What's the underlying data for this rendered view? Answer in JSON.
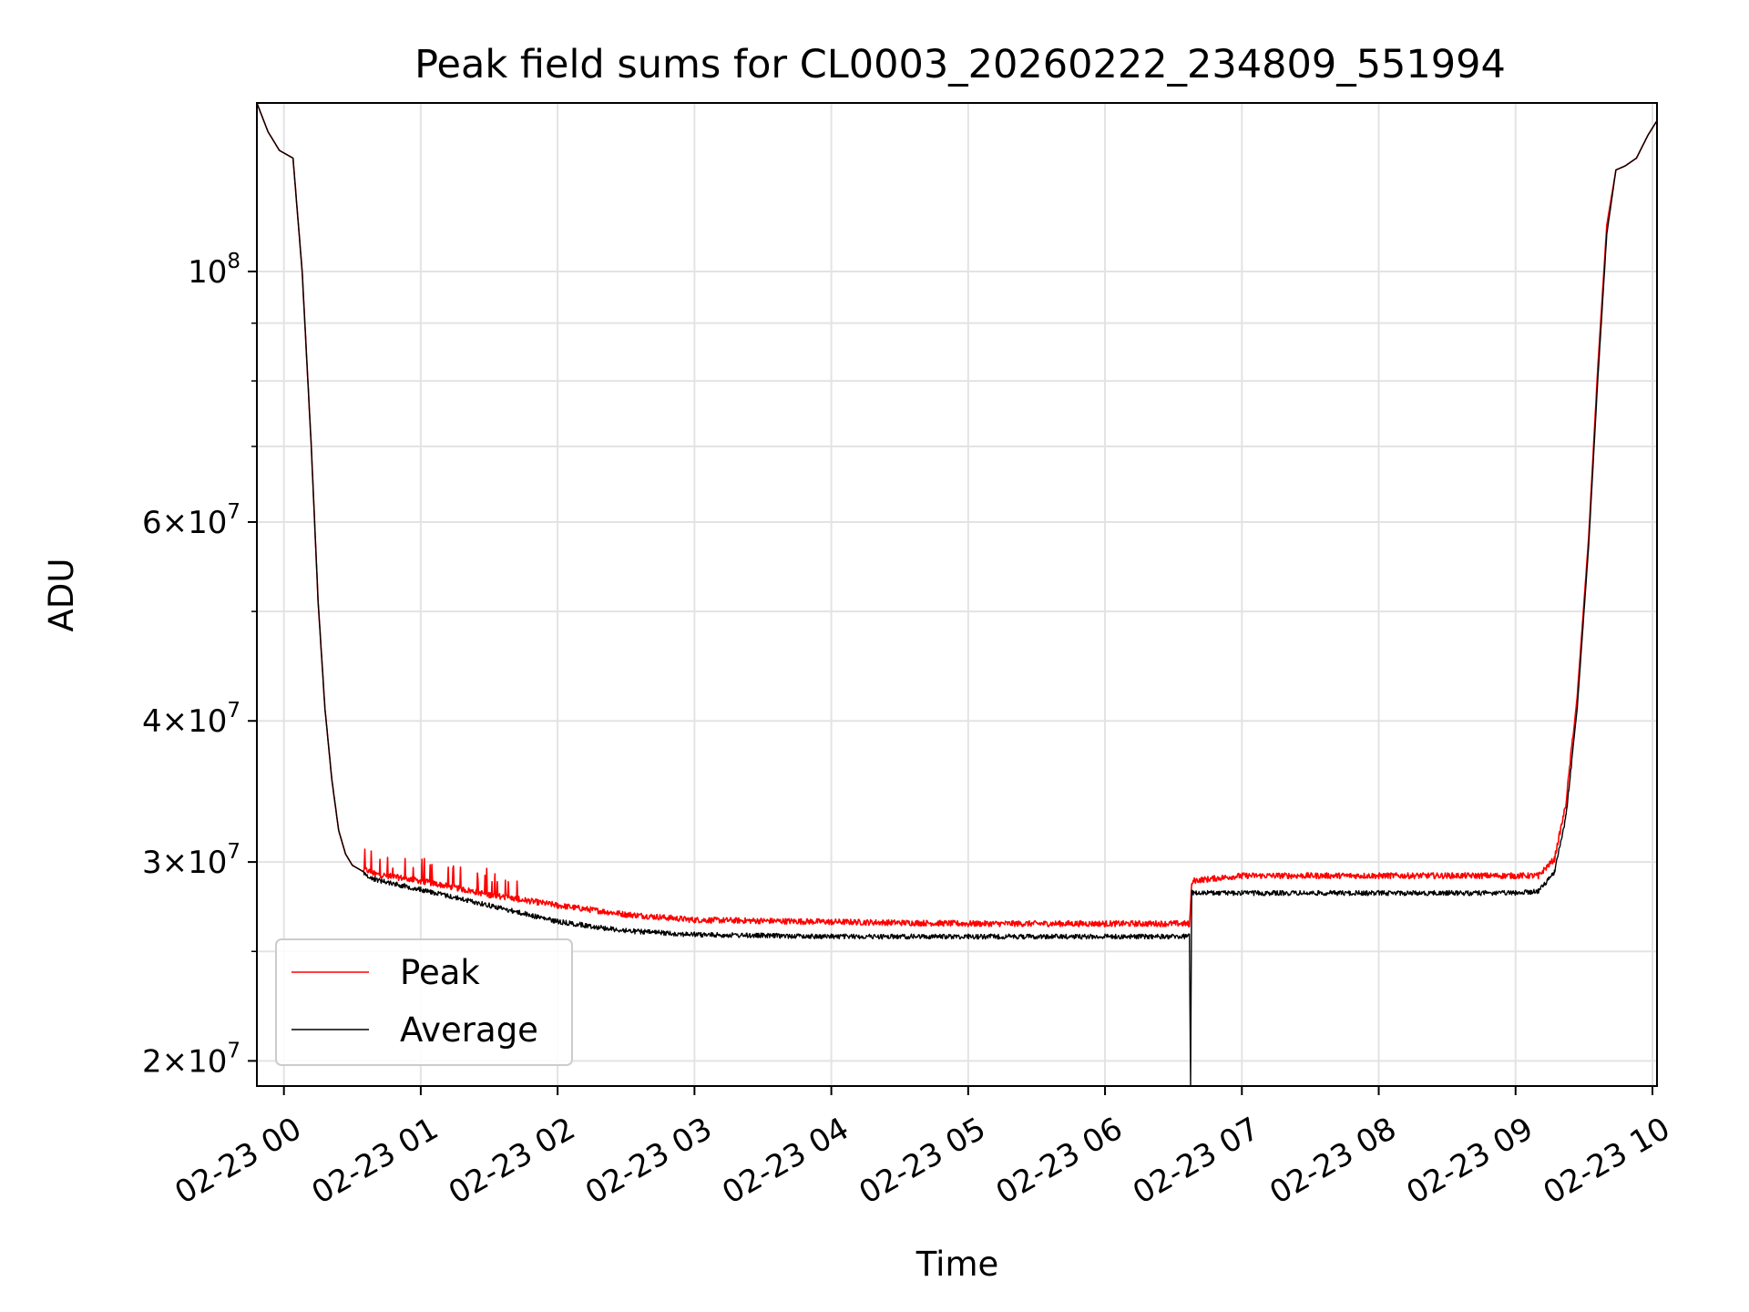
{
  "chart_data": {
    "type": "line",
    "title": "Peak field sums for CL0003_20260222_234809_551994",
    "xlabel": "Time",
    "ylabel": "ADU",
    "x_ticks": [
      "02-23 00",
      "02-23 01",
      "02-23 02",
      "02-23 03",
      "02-23 04",
      "02-23 05",
      "02-23 06",
      "02-23 07",
      "02-23 08",
      "02-23 09",
      "02-23 10"
    ],
    "xlim": [
      "2026-02-22 23:48:09",
      "2026-02-23 10:02:00"
    ],
    "y_scale": "log",
    "ylim": [
      19000000,
      141000000
    ],
    "y_ticks": [
      {
        "value": 20000000,
        "mantissa": "2",
        "exp": "7"
      },
      {
        "value": 30000000,
        "mantissa": "3",
        "exp": "7"
      },
      {
        "value": 40000000,
        "mantissa": "4",
        "exp": "7"
      },
      {
        "value": 60000000,
        "mantissa": "6",
        "exp": "7"
      },
      {
        "value": 100000000,
        "mantissa": "",
        "exp": "8"
      }
    ],
    "grid": true,
    "legend": {
      "position": "lower-left"
    },
    "series": [
      {
        "name": "Peak",
        "color": "#ff0000",
        "noise": "up",
        "x": [
          "2026-02-22 23:48:09",
          "2026-02-22 23:53:00",
          "2026-02-22 23:58:00",
          "2026-02-23 00:04:00",
          "2026-02-23 00:08:00",
          "2026-02-23 00:12:00",
          "2026-02-23 00:15:00",
          "2026-02-23 00:18:00",
          "2026-02-23 00:21:00",
          "2026-02-23 00:24:00",
          "2026-02-23 00:27:00",
          "2026-02-23 00:30:00",
          "2026-02-23 00:35:00",
          "2026-02-23 00:40:00",
          "2026-02-23 01:00:00",
          "2026-02-23 01:30:00",
          "2026-02-23 02:00:00",
          "2026-02-23 02:30:00",
          "2026-02-23 03:00:00",
          "2026-02-23 04:00:00",
          "2026-02-23 05:00:00",
          "2026-02-23 06:00:00",
          "2026-02-23 06:37:00",
          "2026-02-23 06:38:00",
          "2026-02-23 06:45:00",
          "2026-02-23 07:00:00",
          "2026-02-23 08:00:00",
          "2026-02-23 09:00:00",
          "2026-02-23 09:10:00",
          "2026-02-23 09:17:00",
          "2026-02-23 09:22:00",
          "2026-02-23 09:27:00",
          "2026-02-23 09:32:00",
          "2026-02-23 09:36:00",
          "2026-02-23 09:40:00",
          "2026-02-23 09:44:00",
          "2026-02-23 09:48:00",
          "2026-02-23 09:53:00",
          "2026-02-23 09:58:00",
          "2026-02-23 10:02:00"
        ],
        "y": [
          141000000,
          133000000,
          128000000,
          126000000,
          100000000,
          70000000,
          51000000,
          41000000,
          35500000,
          32000000,
          30500000,
          29800000,
          29400000,
          29100000,
          28700000,
          27900000,
          27300000,
          26800000,
          26500000,
          26400000,
          26300000,
          26300000,
          26300000,
          28700000,
          28800000,
          29000000,
          29000000,
          29000000,
          29000000,
          30000000,
          33500000,
          42000000,
          58000000,
          82000000,
          110000000,
          123000000,
          124000000,
          126000000,
          132000000,
          136000000
        ]
      },
      {
        "name": "Average",
        "color": "#000000",
        "noise": "down",
        "x": [
          "2026-02-22 23:48:09",
          "2026-02-22 23:53:00",
          "2026-02-22 23:58:00",
          "2026-02-23 00:04:00",
          "2026-02-23 00:08:00",
          "2026-02-23 00:12:00",
          "2026-02-23 00:15:00",
          "2026-02-23 00:18:00",
          "2026-02-23 00:21:00",
          "2026-02-23 00:24:00",
          "2026-02-23 00:27:00",
          "2026-02-23 00:30:00",
          "2026-02-23 00:35:00",
          "2026-02-23 00:40:00",
          "2026-02-23 01:00:00",
          "2026-02-23 01:30:00",
          "2026-02-23 02:00:00",
          "2026-02-23 02:30:00",
          "2026-02-23 03:00:00",
          "2026-02-23 04:00:00",
          "2026-02-23 05:00:00",
          "2026-02-23 06:00:00",
          "2026-02-23 06:37:00",
          "2026-02-23 06:37:30",
          "2026-02-23 06:38:00",
          "2026-02-23 06:45:00",
          "2026-02-23 07:00:00",
          "2026-02-23 08:00:00",
          "2026-02-23 09:00:00",
          "2026-02-23 09:10:00",
          "2026-02-23 09:17:00",
          "2026-02-23 09:22:00",
          "2026-02-23 09:27:00",
          "2026-02-23 09:32:00",
          "2026-02-23 09:36:00",
          "2026-02-23 09:40:00",
          "2026-02-23 09:44:00",
          "2026-02-23 09:48:00",
          "2026-02-23 09:53:00",
          "2026-02-23 09:58:00",
          "2026-02-23 10:02:00"
        ],
        "y": [
          141000000,
          133000000,
          128000000,
          126000000,
          100000000,
          70000000,
          51000000,
          41000000,
          35500000,
          32000000,
          30500000,
          29800000,
          29400000,
          29100000,
          28500000,
          27600000,
          26700000,
          26200000,
          26000000,
          25900000,
          25900000,
          25900000,
          25900000,
          19000000,
          28300000,
          28300000,
          28300000,
          28300000,
          28300000,
          28400000,
          29500000,
          33000000,
          41000000,
          57000000,
          80000000,
          108000000,
          123000000,
          124000000,
          126000000,
          132000000,
          136000000
        ]
      }
    ]
  }
}
